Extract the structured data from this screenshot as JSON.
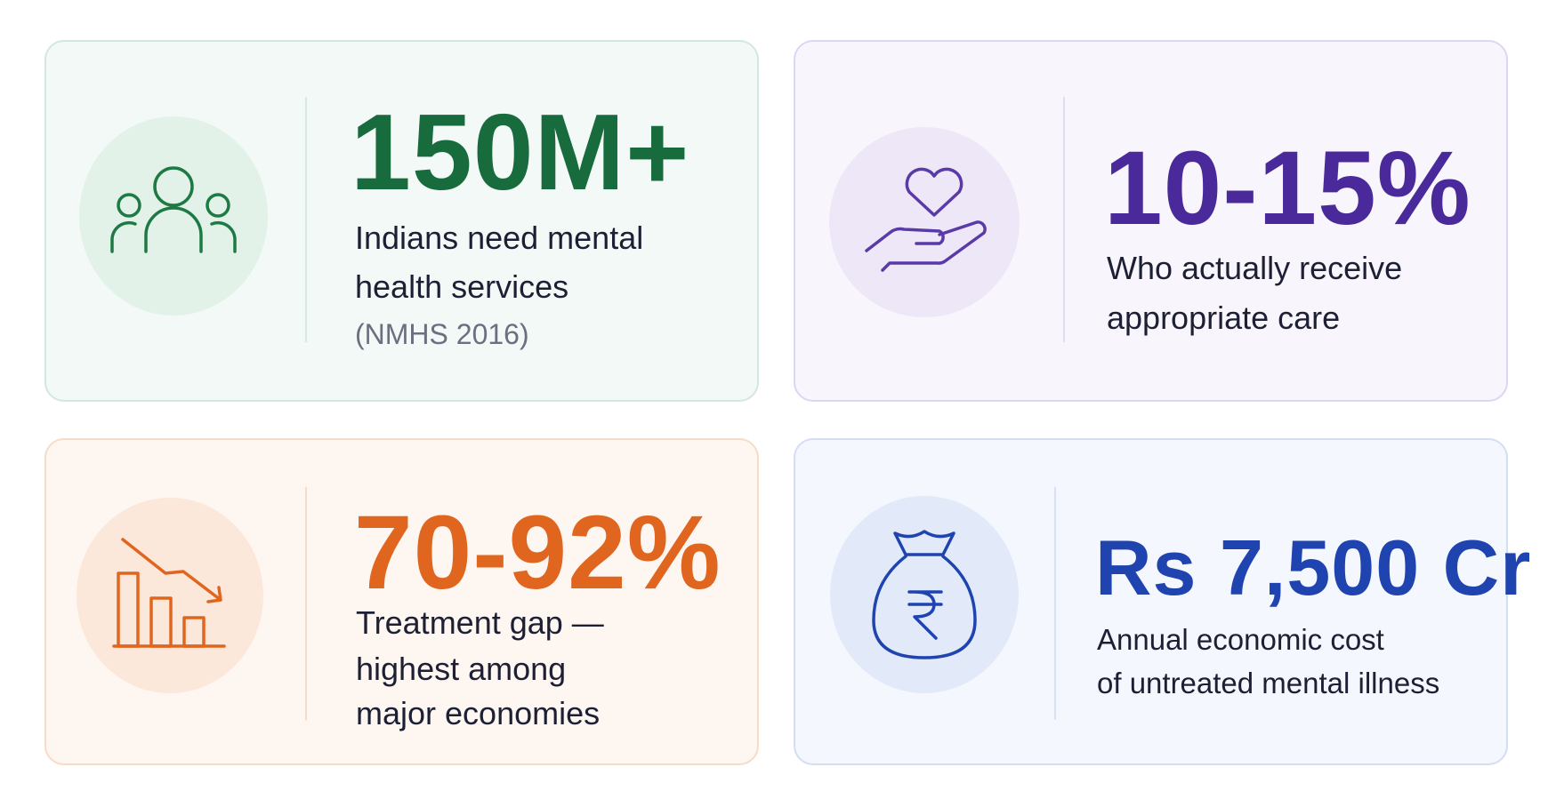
{
  "cards": [
    {
      "stat": "150M+",
      "lines": [
        "Indians need mental",
        "health services"
      ],
      "note": "(NMHS 2016)"
    },
    {
      "stat": "10-15%",
      "lines": [
        "Who actually receive",
        "appropriate care"
      ]
    },
    {
      "stat": "70-92%",
      "lines": [
        "Treatment gap —",
        "highest among",
        "major economies"
      ]
    },
    {
      "stat": "Rs 7,500 Cr",
      "lines": [
        "Annual economic cost",
        "of untreated mental illness"
      ]
    }
  ]
}
